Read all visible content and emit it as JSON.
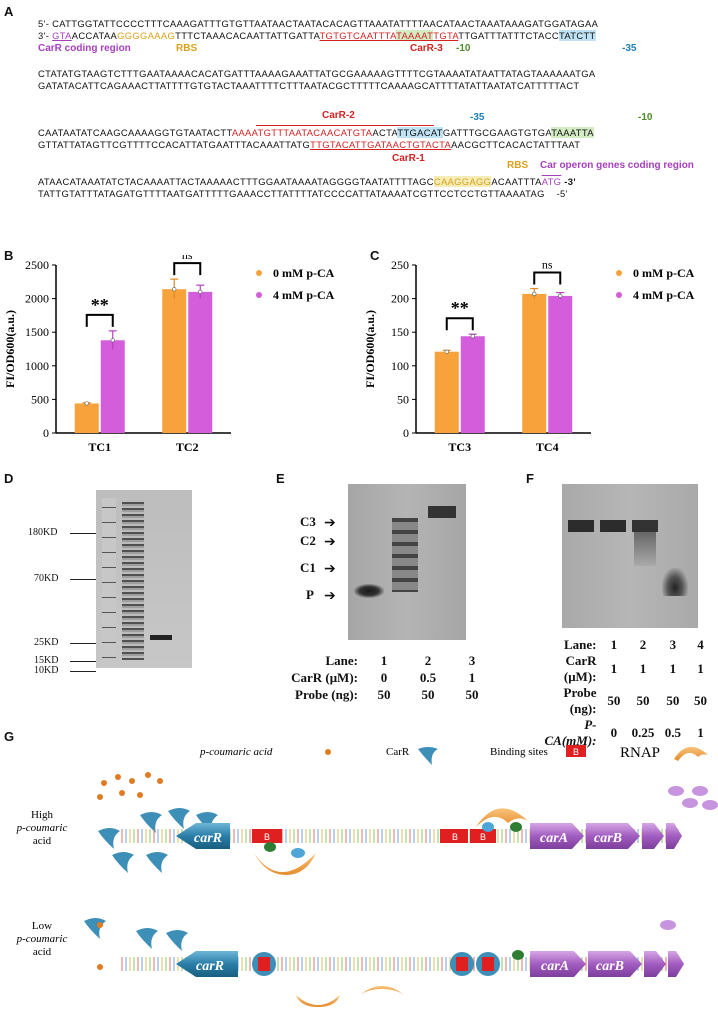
{
  "panels": {
    "A": "A",
    "B": "B",
    "C": "C",
    "D": "D",
    "E": "E",
    "F": "F",
    "G": "G"
  },
  "panelA": {
    "line1_prefix": "5'-",
    "line1_seq": "CATTGGTATTCCCCTTTCAAAGATTTGTGTTAATAACTAATACACAGTTAAATATTTTAACATAACTAAATAAAGATGGATAGAA",
    "line2_prefix": "3'-",
    "line2_a": "GTA",
    "line2_b": "ACCATAA",
    "line2_rbs": "GGGGAAAG",
    "line2_c": "TTTCTAAACACAATTATTGATTA",
    "line2_carr3a": "TGTGTCAATTTA",
    "line2_carr3_hl": "TAAAAT",
    "line2_carr3b": "TGTA",
    "line2_d": "TTGATTTATTTCTACC",
    "line2_35": "TATCTT",
    "label_carR_coding": "CarR coding region",
    "label_rbs1": "RBS",
    "label_carR3": "CarR-3",
    "label_m10_a": "-10",
    "label_m35_a": "-35",
    "line3": "CTATATGTAAGTCTTTGAATAAAACACATGATTTAAAAGAAATTATGCGAAAAAGTTTTCGTAAAATATAATTATAGTAAAAAATGA",
    "line4": "GATATACATTCAGAAACTTATTTTGTGTACTAAATTTTCTTTAATACGCTTTTTCAAAAGCATTTTATATTAATATCATTTTTACT",
    "label_carR2": "CarR-2",
    "label_m35_b": "-35",
    "label_m10_b": "-10",
    "line5_a": "CAATAATATCAAGCAAAAGGTGTAATACTT",
    "line5_carr2": "AAAATGTTTAATACAACATGTA",
    "line5_b": "ACTA",
    "line5_35": "TTGACAT",
    "line5_c": "GATTTGCGAAGTGTGA",
    "line5_10": "TAAATTA",
    "line6_a": "GTTATTATAGTTCGTTTTCCACATTATGAATTTACAAATTATG",
    "line6_carr1": "TTGTACATTGATAACTGTACTA",
    "line6_b": "AACGCTTCACACTATTTAAT",
    "label_carR1": "CarR-1",
    "label_rbs2": "RBS",
    "label_car_operon": "Car operon genes coding region",
    "line7_a": "ATAACATAAATATCTACAAAATTACTAAAAACTTTGGAATAAAATAGGGGTAATATTTTAGC",
    "line7_rbs": "CAAGGAGG",
    "line7_b": "ACAATTTA",
    "line7_atg": "ATG",
    "line7_suffix": "-3'",
    "line8": "TATTGTATTTATAGATGTTTTAATGATTTTTGAAACCTTATTTTATCCCCATTATAAAATCGTTCCTCCTGTTAAAATAG",
    "line8_suffix": "-5'"
  },
  "chart_data": [
    {
      "type": "bar",
      "panel": "B",
      "categories": [
        "TC1",
        "TC2"
      ],
      "series": [
        {
          "name": "0 mM p-CA",
          "values": [
            440,
            2140
          ],
          "errors": [
            10,
            150
          ],
          "color": "#f7a23b"
        },
        {
          "name": "4 mM p-CA",
          "values": [
            1380,
            2100
          ],
          "errors": [
            140,
            100
          ],
          "color": "#d45ddb"
        }
      ],
      "ylabel": "FI/OD600(a.u.)",
      "ylim": [
        0,
        2500
      ],
      "yticks": [
        0,
        500,
        1000,
        1500,
        2000,
        2500
      ],
      "significance": [
        "**",
        "ns"
      ],
      "legend_position": "right"
    },
    {
      "type": "bar",
      "panel": "C",
      "categories": [
        "TC3",
        "TC4"
      ],
      "series": [
        {
          "name": "0 mM p-CA",
          "values": [
            121,
            207
          ],
          "errors": [
            2,
            8
          ],
          "color": "#f7a23b"
        },
        {
          "name": "4 mM p-CA",
          "values": [
            144,
            204
          ],
          "errors": [
            3,
            5
          ],
          "color": "#d45ddb"
        }
      ],
      "ylabel": "FI/OD600(a.u.)",
      "ylim": [
        0,
        250
      ],
      "yticks": [
        0,
        50,
        100,
        150,
        200,
        250
      ],
      "significance": [
        "**",
        "ns"
      ],
      "legend_position": "right"
    }
  ],
  "panelD": {
    "markers": [
      "180KD",
      "70KD",
      "25KD",
      "15KD",
      "10KD"
    ]
  },
  "panelE": {
    "bands": [
      "C3",
      "C2",
      "C1",
      "P"
    ],
    "rows": [
      {
        "label": "Lane:",
        "values": [
          "1",
          "2",
          "3"
        ]
      },
      {
        "label": "CarR (μM):",
        "values": [
          "0",
          "0.5",
          "1"
        ]
      },
      {
        "label": "Probe (ng):",
        "values": [
          "50",
          "50",
          "50"
        ]
      }
    ]
  },
  "panelF": {
    "rows": [
      {
        "label": "Lane:",
        "values": [
          "1",
          "2",
          "3",
          "4"
        ]
      },
      {
        "label": "CarR (μM):",
        "values": [
          "1",
          "1",
          "1",
          "1"
        ]
      },
      {
        "label": "Probe (ng):",
        "values": [
          "50",
          "50",
          "50",
          "50"
        ]
      },
      {
        "label": "P-CA(mM):",
        "values": [
          "0",
          "0.25",
          "0.5",
          "1"
        ]
      }
    ]
  },
  "panelG": {
    "legend_pca": "p-coumaric acid",
    "legend_carR": "CarR",
    "legend_binding": "Binding sites",
    "legend_binding_box": "B",
    "legend_rnap": "RNAP",
    "high_label_1": "High",
    "high_label_2": "p-coumaric",
    "high_label_3": "acid",
    "low_label_1": "Low",
    "low_label_2": "p-coumaric",
    "low_label_3": "acid",
    "gene_carR": "carR",
    "gene_carA": "carA",
    "gene_carB": "carB",
    "box_B": "B",
    "m10": "-10",
    "m35": "-35"
  }
}
